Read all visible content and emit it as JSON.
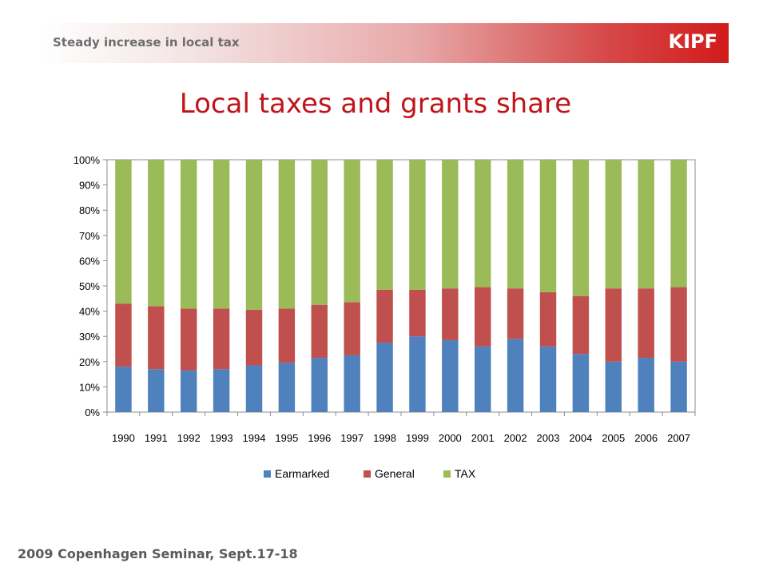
{
  "header": {
    "title": "Steady increase in local tax",
    "logo": "KIPF"
  },
  "slide": {
    "title": "Local taxes and grants share"
  },
  "footer": {
    "text": "2009 Copenhagen Seminar, Sept.17-18"
  },
  "colors": {
    "earmarked": "#4f81bd",
    "general": "#c0504d",
    "tax": "#9bbb59",
    "accent": "#d21a1a",
    "title": "#c0141a"
  },
  "chart_data": {
    "type": "bar",
    "stacked": true,
    "percent": true,
    "categories": [
      "1990",
      "1991",
      "1992",
      "1993",
      "1994",
      "1995",
      "1996",
      "1997",
      "1998",
      "1999",
      "2000",
      "2001",
      "2002",
      "2003",
      "2004",
      "2005",
      "2006",
      "2007"
    ],
    "series": [
      {
        "name": "Earmarked",
        "color": "#4f81bd",
        "values": [
          18,
          17,
          16.5,
          17,
          18.5,
          19.5,
          21.5,
          22.5,
          27.5,
          30,
          28.5,
          26,
          29,
          26,
          23,
          20,
          21.5,
          20
        ]
      },
      {
        "name": "General",
        "color": "#c0504d",
        "values": [
          25,
          25,
          24.5,
          24,
          22,
          21.5,
          21,
          21,
          21,
          18.5,
          20.5,
          23.5,
          20,
          21.5,
          23,
          29,
          27.5,
          29.5
        ]
      },
      {
        "name": "TAX",
        "color": "#9bbb59",
        "values": [
          57,
          58,
          59,
          59,
          59.5,
          59,
          57.5,
          56.5,
          51.5,
          51.5,
          51,
          50.5,
          51,
          52.5,
          54,
          51,
          51,
          50.5
        ]
      }
    ],
    "yticks": [
      "0%",
      "10%",
      "20%",
      "30%",
      "40%",
      "50%",
      "60%",
      "70%",
      "80%",
      "90%",
      "100%"
    ],
    "ylim": [
      0,
      100
    ],
    "grid": false,
    "legend": "bottom"
  }
}
